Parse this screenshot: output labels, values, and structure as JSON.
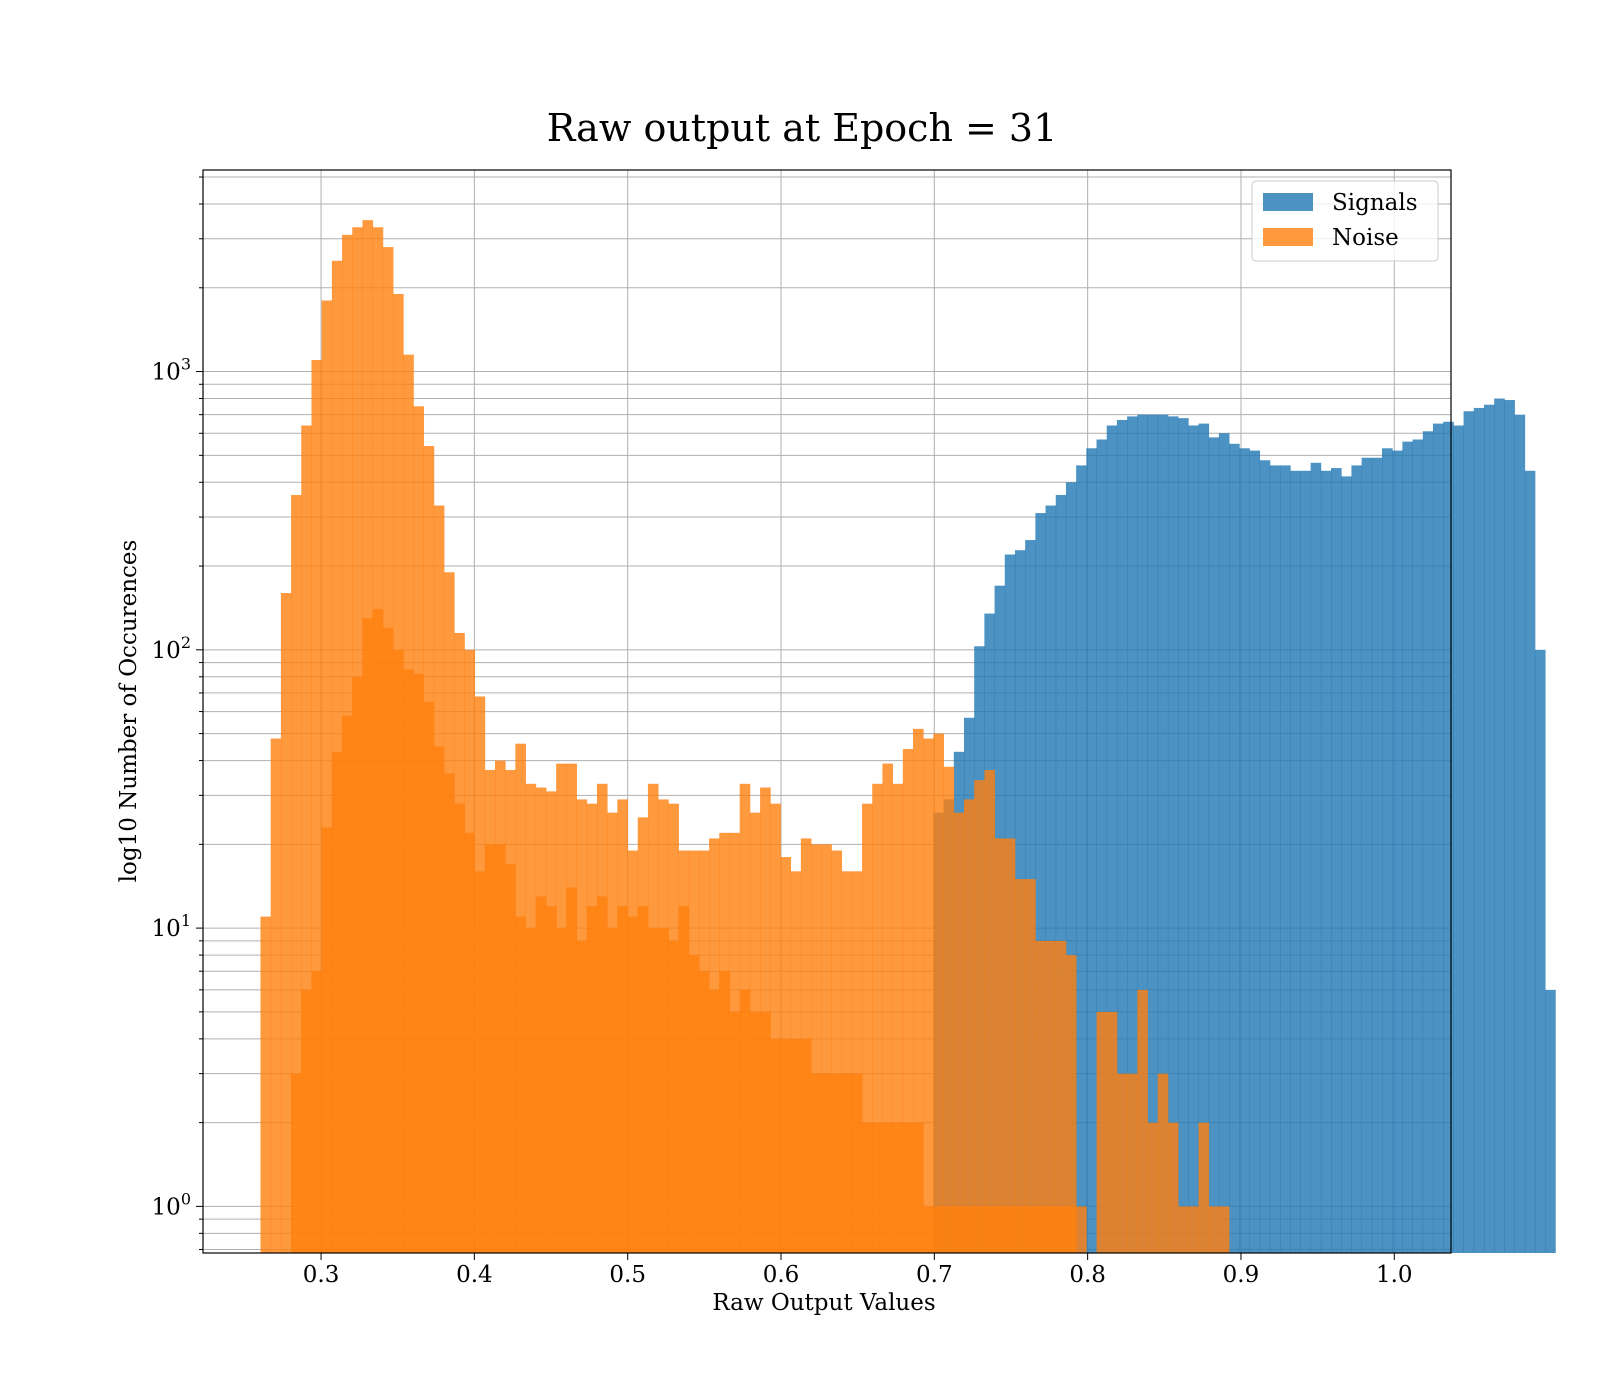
{
  "chart_data": {
    "type": "bar",
    "title": "Raw output at Epoch = 31",
    "xlabel": "Raw Output Values",
    "ylabel": "log10 Number of Occurences",
    "yscale": "log",
    "xlim": [
      0.223,
      1.037
    ],
    "ylim": [
      0.68,
      5300
    ],
    "grid": true,
    "legend_position": "top-right",
    "bin_start": 0.2605,
    "bin_width": 0.00665,
    "xticks": [
      0.3,
      0.4,
      0.5,
      0.6,
      0.7,
      0.8,
      0.9,
      1.0
    ],
    "xtick_labels": [
      "0.3",
      "0.4",
      "0.5",
      "0.6",
      "0.7",
      "0.8",
      "0.9",
      "1.0"
    ],
    "yticks": [
      {
        "value": 1,
        "base": "10",
        "exp": "0"
      },
      {
        "value": 10,
        "base": "10",
        "exp": "1"
      },
      {
        "value": 100,
        "base": "10",
        "exp": "2"
      },
      {
        "value": 1000,
        "base": "10",
        "exp": "3"
      }
    ],
    "series": [
      {
        "name": "Signals",
        "color": "#1f77b4",
        "opacity": 0.8,
        "values": [
          0,
          0,
          0,
          0,
          0,
          0,
          0,
          0,
          0,
          0,
          0,
          0,
          0,
          0,
          0,
          0,
          0,
          0,
          0,
          0,
          0,
          0,
          0,
          0,
          0,
          0,
          0,
          0,
          0,
          0,
          0,
          0,
          0,
          0,
          0,
          0,
          0,
          0,
          0,
          0,
          0,
          0,
          0,
          0,
          0,
          0,
          0,
          0,
          0,
          0,
          0,
          0,
          0,
          0,
          0,
          0,
          0,
          0,
          0,
          0,
          0,
          0,
          0,
          0,
          0,
          0,
          26,
          29,
          43,
          57,
          103,
          135,
          170,
          220,
          228,
          248,
          310,
          330,
          360,
          400,
          460,
          530,
          570,
          640,
          670,
          690,
          700,
          700,
          700,
          690,
          680,
          640,
          650,
          580,
          600,
          550,
          530,
          520,
          480,
          460,
          460,
          440,
          440,
          470,
          440,
          450,
          420,
          460,
          490,
          490,
          530,
          520,
          560,
          570,
          610,
          650,
          660,
          640,
          720,
          740,
          760,
          800,
          790,
          700,
          440,
          100,
          6
        ]
      },
      {
        "name": "Noise",
        "color": "#ff7f0e",
        "opacity": 0.8,
        "values": [
          11,
          48,
          160,
          360,
          640,
          1100,
          1800,
          2500,
          3100,
          3300,
          3500,
          3300,
          2800,
          1900,
          1150,
          750,
          540,
          330,
          190,
          115,
          100,
          68,
          37,
          40,
          37,
          46,
          33,
          32,
          31,
          39,
          39,
          29,
          28,
          33,
          26,
          29,
          19,
          25,
          33,
          29,
          28,
          19,
          19,
          19,
          21,
          22,
          22,
          33,
          26,
          32,
          28,
          18,
          16,
          21,
          20,
          20,
          19,
          16,
          16,
          28,
          33,
          39,
          33,
          44,
          52,
          48,
          50,
          38,
          26,
          29,
          34,
          37,
          21,
          21,
          15,
          15,
          9,
          9,
          9,
          8,
          0,
          0,
          5,
          5,
          3,
          3,
          6,
          2,
          3,
          2,
          1,
          1,
          2,
          1,
          1
        ]
      },
      {
        "name": "",
        "color": "#ff7f0e",
        "opacity": 0.8,
        "values": [
          0,
          0,
          0,
          3,
          6,
          7,
          23,
          43,
          58,
          80,
          130,
          140,
          120,
          100,
          85,
          82,
          65,
          45,
          36,
          28,
          22,
          16,
          20,
          20,
          17,
          11,
          10,
          13,
          12,
          10,
          14,
          9,
          12,
          13,
          10,
          12,
          11,
          12,
          10,
          10,
          9,
          12,
          8,
          7,
          6,
          7,
          5,
          6,
          5,
          5,
          4,
          4,
          4,
          4,
          3,
          3,
          3,
          3,
          3,
          2,
          2,
          2,
          2,
          2,
          2,
          1,
          1,
          1,
          1,
          1,
          1,
          1,
          1,
          1,
          1,
          1,
          1,
          1,
          1,
          1,
          1
        ]
      }
    ]
  }
}
